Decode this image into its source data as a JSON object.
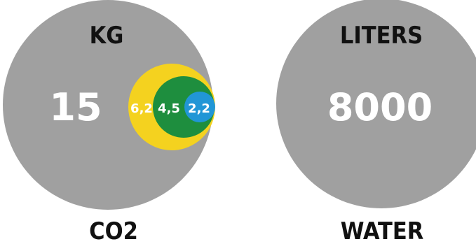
{
  "co2": {
    "unit": "KG",
    "total": "15",
    "caption": "CO2",
    "nested_values": [
      "6,2",
      "4,5",
      "2,2"
    ]
  },
  "water": {
    "unit": "LITERS",
    "total": "8000",
    "caption": "WATER"
  },
  "colors": {
    "main_circle": "#a0a0a0",
    "ring_outer": "#f4d21f",
    "ring_middle": "#1e8e3e",
    "ring_inner": "#2196d6",
    "text_dark": "#111111",
    "text_light": "#ffffff"
  }
}
